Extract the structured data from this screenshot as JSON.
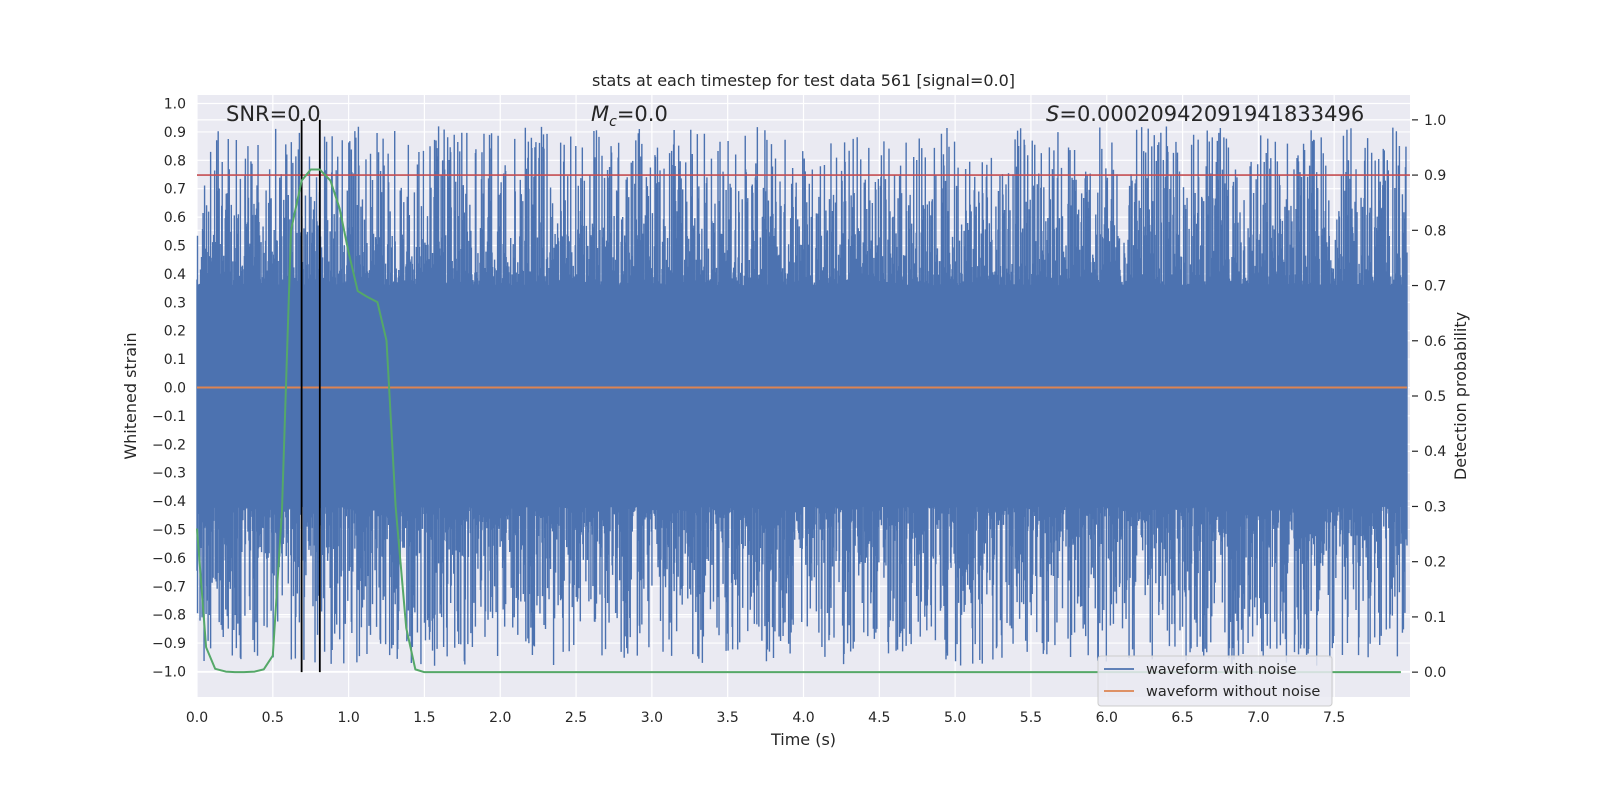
{
  "chart_data": {
    "type": "line",
    "title": "stats at each timestep for test data 561 [signal=0.0]",
    "xlabel": "Time (s)",
    "ylabel": "Whitened strain",
    "ylabel_right": "Detection probability",
    "xlim": [
      0.0,
      8.0
    ],
    "ylim": [
      -1.09,
      1.03
    ],
    "ylim_right": [
      -0.045,
      1.045
    ],
    "x_ticks": [
      "0.0",
      "0.5",
      "1.0",
      "1.5",
      "2.0",
      "2.5",
      "3.0",
      "3.5",
      "4.0",
      "4.5",
      "5.0",
      "5.5",
      "6.0",
      "6.5",
      "7.0",
      "7.5"
    ],
    "y_ticks": [
      "1.0",
      "0.9",
      "0.8",
      "0.7",
      "0.6",
      "0.5",
      "0.4",
      "0.3",
      "0.2",
      "0.1",
      "0.0",
      "−0.1",
      "−0.2",
      "−0.3",
      "−0.4",
      "−0.5",
      "−0.6",
      "−0.7",
      "−0.8",
      "−0.9",
      "−1.0"
    ],
    "y_ticks_right": [
      "1.0",
      "0.9",
      "0.8",
      "0.7",
      "0.6",
      "0.5",
      "0.4",
      "0.3",
      "0.2",
      "0.1",
      "0.0"
    ],
    "annotations": {
      "snr": "SNR=0.0",
      "mc": "=0.0",
      "mc_symbol": "M",
      "mc_sub": "c",
      "s": "=0.00020942091941833496",
      "s_symbol": "S"
    },
    "threshold": {
      "value": 0.9,
      "axis": "right",
      "color": "#c44e52"
    },
    "vertical_markers": {
      "x": [
        0.69,
        0.81
      ],
      "color": "#000000"
    },
    "noise_band": {
      "lower": -0.42,
      "upper": 0.36,
      "peak_max": 0.92,
      "trough_min": -0.98,
      "samples": 2400,
      "seed": 561
    },
    "series": [
      {
        "name": "waveform with noise",
        "color": "#4c72b0",
        "axis": "left"
      },
      {
        "name": "waveform without noise",
        "color": "#dd8452",
        "axis": "left",
        "values_constant": 0.0
      },
      {
        "name": "detection probability",
        "color": "#55a868",
        "axis": "right",
        "x": [
          0.0,
          0.06,
          0.12,
          0.19,
          0.25,
          0.31,
          0.38,
          0.44,
          0.5,
          0.56,
          0.62,
          0.69,
          0.75,
          0.81,
          0.88,
          0.94,
          1.0,
          1.06,
          1.12,
          1.19,
          1.25,
          1.31,
          1.38,
          1.44,
          1.5,
          7.94
        ],
        "y": [
          0.26,
          0.045,
          0.006,
          0.001,
          0.0,
          0.0,
          0.001,
          0.005,
          0.03,
          0.29,
          0.8,
          0.89,
          0.91,
          0.91,
          0.89,
          0.84,
          0.76,
          0.69,
          0.68,
          0.67,
          0.6,
          0.3,
          0.08,
          0.005,
          0.0,
          0.0
        ]
      }
    ],
    "legend": {
      "placement": "lower-right",
      "entries": [
        {
          "label": "waveform with noise",
          "color": "#4c72b0"
        },
        {
          "label": "waveform without noise",
          "color": "#dd8452"
        }
      ]
    },
    "grid": true,
    "background": "#eaeaf2"
  }
}
